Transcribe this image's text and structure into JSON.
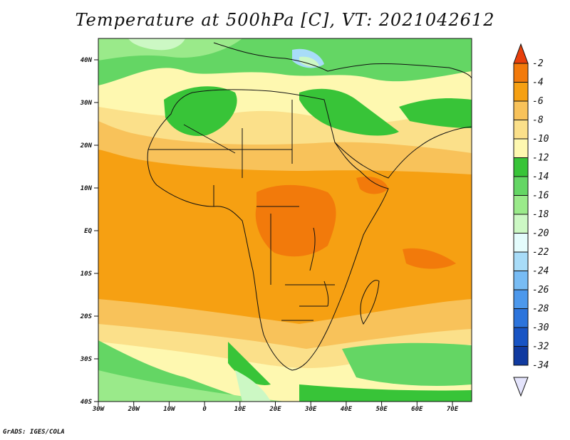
{
  "title": "Temperature at 500hPa [C], VT: 2021042612",
  "credit": "GrADS: IGES/COLA",
  "map": {
    "lon_labels": [
      "30W",
      "20W",
      "10W",
      "0",
      "10E",
      "20E",
      "30E",
      "40E",
      "50E",
      "60E",
      "70E"
    ],
    "lat_labels": [
      "40N",
      "30N",
      "20N",
      "10N",
      "EQ",
      "10S",
      "20S",
      "30S",
      "40S"
    ]
  },
  "colorbar": {
    "levels": [
      "-2",
      "-4",
      "-6",
      "-8",
      "-10",
      "-12",
      "-14",
      "-16",
      "-18",
      "-20",
      "-22",
      "-24",
      "-26",
      "-28",
      "-30",
      "-32",
      "-34"
    ],
    "colors": [
      "#e8400c",
      "#f27a0b",
      "#f6a012",
      "#f8c25a",
      "#fbe08a",
      "#fef8b0",
      "#38c438",
      "#64d664",
      "#9aea8a",
      "#ccf8c4",
      "#e4fcfc",
      "#a8dcf8",
      "#78bcf4",
      "#4c98ec",
      "#2c74dc",
      "#1854c4",
      "#103aa0",
      "#0a1c78"
    ]
  }
}
